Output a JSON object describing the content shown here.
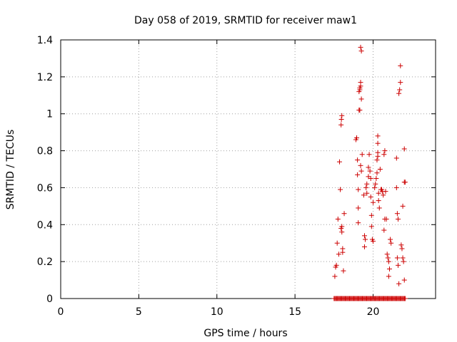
{
  "chart_data": {
    "type": "scatter",
    "title": "Day 058 of 2019, SRMTID for receiver maw1",
    "xlabel": "GPS time / hours",
    "ylabel": "SRMTID / TECUs",
    "xlim": [
      0,
      24
    ],
    "ylim": [
      0,
      1.4
    ],
    "xticks": [
      0,
      5,
      10,
      15,
      20
    ],
    "yticks": [
      0,
      0.2,
      0.4,
      0.6,
      0.8,
      1,
      1.2,
      1.4
    ],
    "xtick_labels": [
      "0",
      "5",
      "10",
      "15",
      "20"
    ],
    "ytick_labels": [
      "0",
      "0.2",
      "0.4",
      "0.6",
      "0.8",
      "1",
      "1.2",
      "1.4"
    ],
    "grid": true,
    "marker": "+",
    "color": "#cc0000",
    "series": [
      {
        "name": "SRMTID",
        "points": [
          [
            17.55,
            0.12
          ],
          [
            17.6,
            0.17
          ],
          [
            17.65,
            0.18
          ],
          [
            17.7,
            0.3
          ],
          [
            17.75,
            0.43
          ],
          [
            17.8,
            0.24
          ],
          [
            17.85,
            0.74
          ],
          [
            17.9,
            0.59
          ],
          [
            17.95,
            0.38
          ],
          [
            18.0,
            0.39
          ],
          [
            17.95,
            0.94
          ],
          [
            17.97,
            0.97
          ],
          [
            18.0,
            0.99
          ],
          [
            18.0,
            0.36
          ],
          [
            18.05,
            0.25
          ],
          [
            18.05,
            0.27
          ],
          [
            18.1,
            0.15
          ],
          [
            18.15,
            0.46
          ],
          [
            18.9,
            0.86
          ],
          [
            18.95,
            0.87
          ],
          [
            19.0,
            0.75
          ],
          [
            19.0,
            0.67
          ],
          [
            19.05,
            0.59
          ],
          [
            19.05,
            0.49
          ],
          [
            19.05,
            0.41
          ],
          [
            19.1,
            1.02
          ],
          [
            19.15,
            1.02
          ],
          [
            19.1,
            1.12
          ],
          [
            19.15,
            1.13
          ],
          [
            19.15,
            1.14
          ],
          [
            19.2,
            1.17
          ],
          [
            19.2,
            1.15
          ],
          [
            19.25,
            1.08
          ],
          [
            19.2,
            1.36
          ],
          [
            19.25,
            1.34
          ],
          [
            19.3,
            0.78
          ],
          [
            19.2,
            0.72
          ],
          [
            19.25,
            0.69
          ],
          [
            19.4,
            0.56
          ],
          [
            19.45,
            0.34
          ],
          [
            19.5,
            0.32
          ],
          [
            19.45,
            0.28
          ],
          [
            19.55,
            0.6
          ],
          [
            19.6,
            0.62
          ],
          [
            19.6,
            0.57
          ],
          [
            19.7,
            0.66
          ],
          [
            19.7,
            0.71
          ],
          [
            19.75,
            0.78
          ],
          [
            19.8,
            0.69
          ],
          [
            19.85,
            0.65
          ],
          [
            19.85,
            0.55
          ],
          [
            19.9,
            0.45
          ],
          [
            19.9,
            0.39
          ],
          [
            19.95,
            0.32
          ],
          [
            20.0,
            0.31
          ],
          [
            20.0,
            0.52
          ],
          [
            20.1,
            0.6
          ],
          [
            20.15,
            0.62
          ],
          [
            20.2,
            0.65
          ],
          [
            20.25,
            0.68
          ],
          [
            20.25,
            0.75
          ],
          [
            20.3,
            0.77
          ],
          [
            20.3,
            0.79
          ],
          [
            20.3,
            0.88
          ],
          [
            20.3,
            0.84
          ],
          [
            20.35,
            0.57
          ],
          [
            20.35,
            0.53
          ],
          [
            20.4,
            0.49
          ],
          [
            20.45,
            0.7
          ],
          [
            20.5,
            0.59
          ],
          [
            20.55,
            0.59
          ],
          [
            20.6,
            0.58
          ],
          [
            20.65,
            0.56
          ],
          [
            20.7,
            0.78
          ],
          [
            20.75,
            0.8
          ],
          [
            20.8,
            0.58
          ],
          [
            20.75,
            0.43
          ],
          [
            20.7,
            0.37
          ],
          [
            20.85,
            0.43
          ],
          [
            20.9,
            0.24
          ],
          [
            20.95,
            0.22
          ],
          [
            21.0,
            0.2
          ],
          [
            21.05,
            0.16
          ],
          [
            21.0,
            0.12
          ],
          [
            21.1,
            0.32
          ],
          [
            21.15,
            0.3
          ],
          [
            21.5,
            0.76
          ],
          [
            21.5,
            0.6
          ],
          [
            21.55,
            0.46
          ],
          [
            21.6,
            0.43
          ],
          [
            21.55,
            0.22
          ],
          [
            21.6,
            0.18
          ],
          [
            21.65,
            0.08
          ],
          [
            21.65,
            1.11
          ],
          [
            21.7,
            1.13
          ],
          [
            21.75,
            1.17
          ],
          [
            21.75,
            1.26
          ],
          [
            21.8,
            0.29
          ],
          [
            21.85,
            0.27
          ],
          [
            21.9,
            0.22
          ],
          [
            21.95,
            0.2
          ],
          [
            21.9,
            0.5
          ],
          [
            22.0,
            0.81
          ],
          [
            22.0,
            0.63
          ],
          [
            22.05,
            0.63
          ],
          [
            22.0,
            0.1
          ]
        ]
      }
    ],
    "zero_points_x_range": [
      17.5,
      22.1
    ]
  }
}
